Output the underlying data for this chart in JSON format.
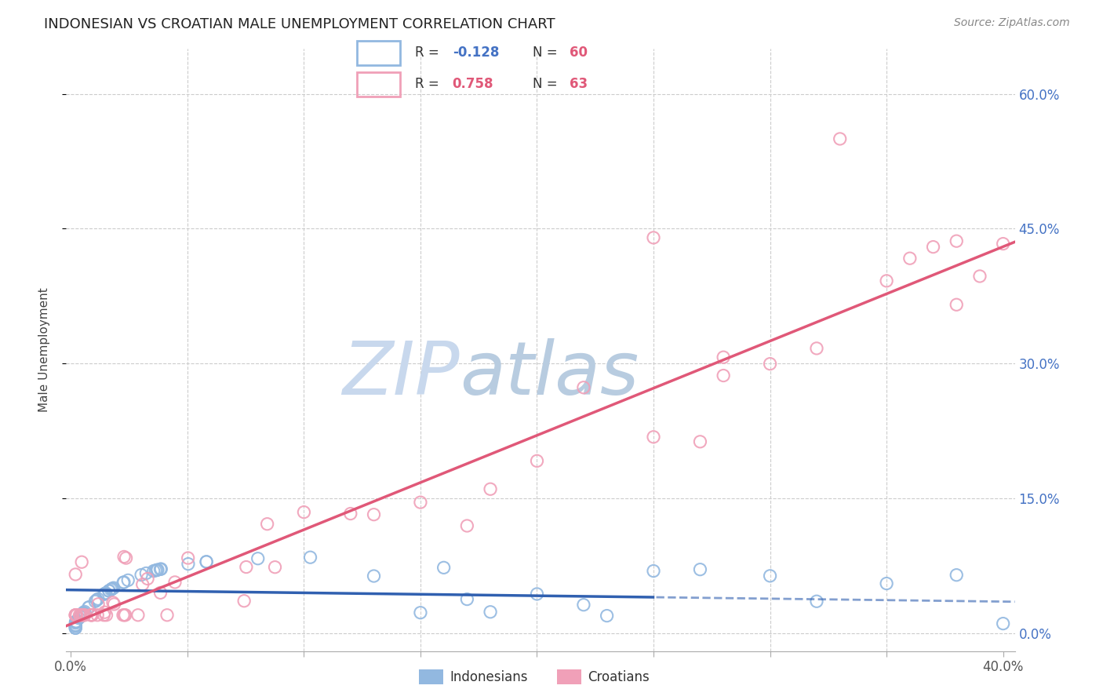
{
  "title": "INDONESIAN VS CROATIAN MALE UNEMPLOYMENT CORRELATION CHART",
  "source": "Source: ZipAtlas.com",
  "ylabel": "Male Unemployment",
  "yticks": [
    0.0,
    0.15,
    0.3,
    0.45,
    0.6
  ],
  "ytick_labels": [
    "0.0%",
    "15.0%",
    "30.0%",
    "45.0%",
    "60.0%"
  ],
  "xlim": [
    -0.002,
    0.405
  ],
  "ylim": [
    -0.02,
    0.65
  ],
  "indonesian_color": "#92b8e0",
  "croatian_color": "#f0a0b8",
  "indonesian_line_color": "#3060b0",
  "croatian_line_color": "#e05878",
  "watermark_color": "#ccdcee",
  "title_fontsize": 13,
  "source_fontsize": 10,
  "ylabel_fontsize": 11,
  "tick_fontsize": 12
}
